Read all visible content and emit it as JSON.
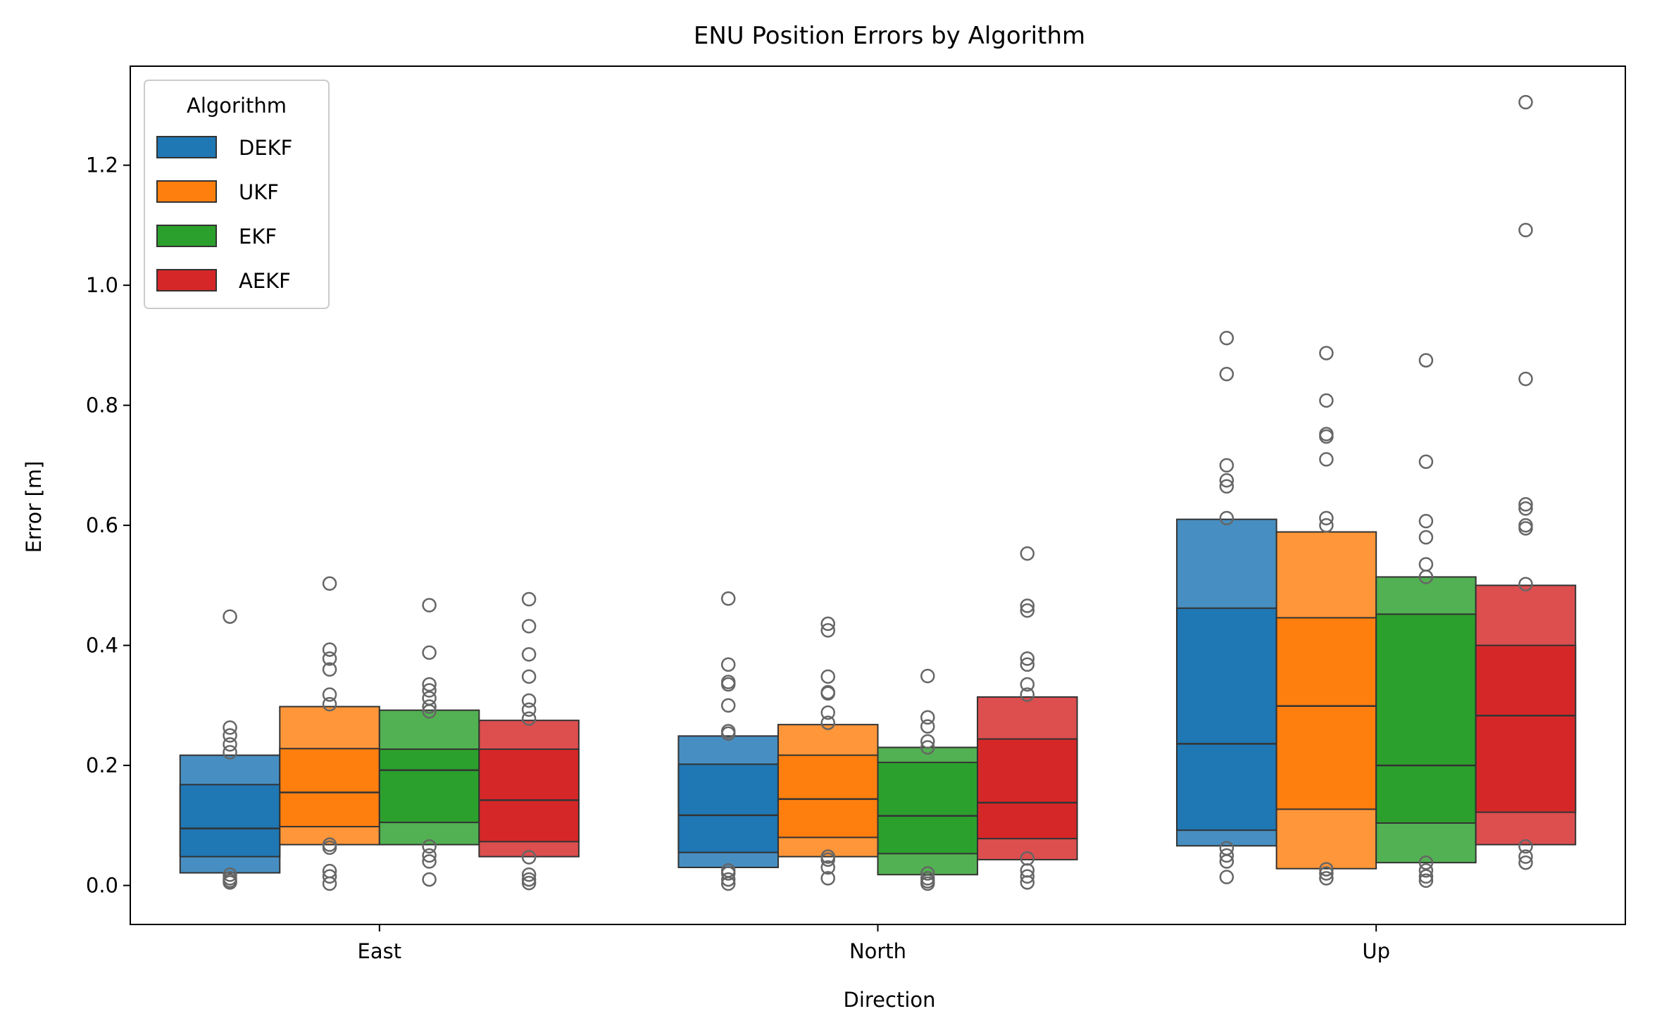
{
  "chart_data": {
    "type": "boxen",
    "title": "ENU Position Errors by Algorithm",
    "xlabel": "Direction",
    "ylabel": "Error [m]",
    "categories": [
      "East",
      "North",
      "Up"
    ],
    "ylim": [
      -0.065,
      1.365
    ],
    "yticks": [
      0.0,
      0.2,
      0.4,
      0.6,
      0.8,
      1.0,
      1.2
    ],
    "ytick_labels": [
      "0.0",
      "0.2",
      "0.4",
      "0.6",
      "0.8",
      "1.0",
      "1.2"
    ],
    "grid": false,
    "legend": {
      "title": "Algorithm",
      "placement": "top-left"
    },
    "series": [
      {
        "name": "DEKF",
        "color": "#1f77b4",
        "boxes": [
          {
            "median": 0.095,
            "levels": [
              [
                0.048,
                0.168
              ],
              [
                0.021,
                0.217
              ]
            ],
            "outliers": [
              0.448,
              0.263,
              0.25,
              0.235,
              0.222,
              0.018,
              0.012,
              0.008,
              0.005
            ]
          },
          {
            "median": 0.117,
            "levels": [
              [
                0.055,
                0.202
              ],
              [
                0.03,
                0.249
              ]
            ],
            "outliers": [
              0.478,
              0.368,
              0.339,
              0.335,
              0.3,
              0.257,
              0.253,
              0.025,
              0.02,
              0.01,
              0.003
            ]
          },
          {
            "median": 0.236,
            "levels": [
              [
                0.092,
                0.462
              ],
              [
                0.066,
                0.61
              ]
            ],
            "outliers": [
              0.912,
              0.852,
              0.7,
              0.675,
              0.665,
              0.612,
              0.062,
              0.05,
              0.04,
              0.014
            ]
          }
        ]
      },
      {
        "name": "UKF",
        "color": "#ff7f0e",
        "boxes": [
          {
            "median": 0.155,
            "levels": [
              [
                0.098,
                0.228
              ],
              [
                0.068,
                0.298
              ]
            ],
            "outliers": [
              0.503,
              0.393,
              0.378,
              0.36,
              0.318,
              0.302,
              0.068,
              0.063,
              0.024,
              0.015,
              0.003
            ]
          },
          {
            "median": 0.144,
            "levels": [
              [
                0.08,
                0.217
              ],
              [
                0.048,
                0.268
              ]
            ],
            "outliers": [
              0.436,
              0.425,
              0.348,
              0.322,
              0.32,
              0.288,
              0.271,
              0.048,
              0.043,
              0.03,
              0.012
            ]
          },
          {
            "median": 0.299,
            "levels": [
              [
                0.127,
                0.446
              ],
              [
                0.028,
                0.589
              ]
            ],
            "outliers": [
              0.887,
              0.808,
              0.752,
              0.748,
              0.71,
              0.612,
              0.6,
              0.027,
              0.02,
              0.012
            ]
          }
        ]
      },
      {
        "name": "EKF",
        "color": "#2ca02c",
        "boxes": [
          {
            "median": 0.192,
            "levels": [
              [
                0.105,
                0.227
              ],
              [
                0.068,
                0.292
              ]
            ],
            "outliers": [
              0.467,
              0.388,
              0.335,
              0.325,
              0.312,
              0.298,
              0.29,
              0.065,
              0.05,
              0.04,
              0.01
            ]
          },
          {
            "median": 0.116,
            "levels": [
              [
                0.053,
                0.205
              ],
              [
                0.018,
                0.23
              ]
            ],
            "outliers": [
              0.349,
              0.28,
              0.265,
              0.24,
              0.23,
              0.02,
              0.012,
              0.007,
              0.003
            ]
          },
          {
            "median": 0.2,
            "levels": [
              [
                0.104,
                0.452
              ],
              [
                0.038,
                0.514
              ]
            ],
            "outliers": [
              0.875,
              0.706,
              0.607,
              0.58,
              0.535,
              0.514,
              0.038,
              0.025,
              0.015,
              0.008
            ]
          }
        ]
      },
      {
        "name": "AEKF",
        "color": "#d62728",
        "boxes": [
          {
            "median": 0.142,
            "levels": [
              [
                0.073,
                0.227
              ],
              [
                0.048,
                0.275
              ]
            ],
            "outliers": [
              0.477,
              0.432,
              0.385,
              0.348,
              0.308,
              0.293,
              0.278,
              0.047,
              0.018,
              0.01,
              0.004
            ]
          },
          {
            "median": 0.138,
            "levels": [
              [
                0.078,
                0.244
              ],
              [
                0.043,
                0.314
              ]
            ],
            "outliers": [
              0.553,
              0.466,
              0.458,
              0.378,
              0.368,
              0.335,
              0.318,
              0.045,
              0.025,
              0.015,
              0.005
            ]
          },
          {
            "median": 0.283,
            "levels": [
              [
                0.122,
                0.4
              ],
              [
                0.068,
                0.5
              ]
            ],
            "outliers": [
              1.305,
              1.092,
              0.844,
              0.635,
              0.628,
              0.6,
              0.595,
              0.502,
              0.065,
              0.048,
              0.038
            ]
          }
        ]
      }
    ]
  }
}
